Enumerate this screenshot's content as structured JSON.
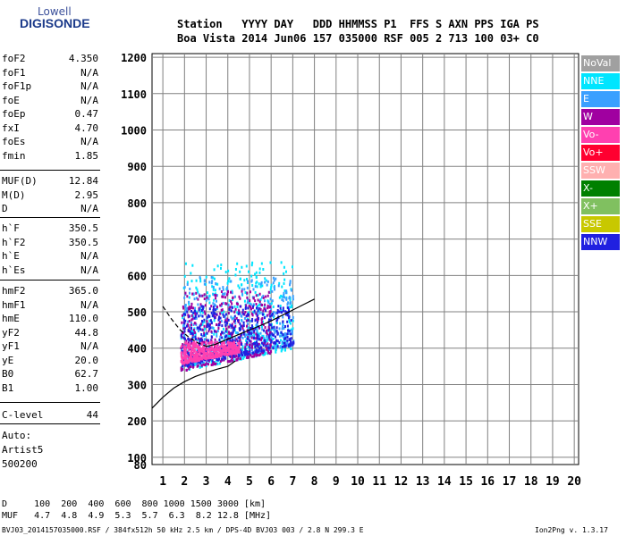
{
  "logo": {
    "line1": "Lowell",
    "line2": "DIGISONDE"
  },
  "header": {
    "row1": "Station   YYYY DAY   DDD HHMMSS P1  FFS S AXN PPS IGA PS",
    "row2": "Boa Vista 2014 Jun06 157 035000 RSF 005 2 713 100 03+ C0"
  },
  "params_group1": [
    {
      "name": "foF2",
      "value": "4.350"
    },
    {
      "name": "foF1",
      "value": "N/A"
    },
    {
      "name": "foF1p",
      "value": "N/A"
    },
    {
      "name": "foE",
      "value": "N/A"
    },
    {
      "name": "foEp",
      "value": "0.47"
    },
    {
      "name": "fxI",
      "value": "4.70"
    },
    {
      "name": "foEs",
      "value": "N/A"
    },
    {
      "name": "fmin",
      "value": "1.85"
    }
  ],
  "params_group2": [
    {
      "name": "MUF(D)",
      "value": "12.84"
    },
    {
      "name": "M(D)",
      "value": "2.95"
    },
    {
      "name": "D",
      "value": "N/A"
    }
  ],
  "params_group3": [
    {
      "name": "h`F",
      "value": "350.5"
    },
    {
      "name": "h`F2",
      "value": "350.5"
    },
    {
      "name": "h`E",
      "value": "N/A"
    },
    {
      "name": "h`Es",
      "value": "N/A"
    }
  ],
  "params_group4": [
    {
      "name": "hmF2",
      "value": "365.0"
    },
    {
      "name": "hmF1",
      "value": "N/A"
    },
    {
      "name": "hmE",
      "value": "110.0"
    },
    {
      "name": "yF2",
      "value": "44.8"
    },
    {
      "name": "yF1",
      "value": "N/A"
    },
    {
      "name": "yE",
      "value": "20.0"
    },
    {
      "name": "B0",
      "value": "62.7"
    },
    {
      "name": "B1",
      "value": "1.00"
    }
  ],
  "params_group5": [
    {
      "name": "C-level",
      "value": "44"
    }
  ],
  "auto": {
    "line1": "Auto:",
    "line2": "Artist5",
    "line3": "500200"
  },
  "legend": [
    {
      "label": "NoVal",
      "color": "#a0a0a0"
    },
    {
      "label": "NNE",
      "color": "#00e5ff"
    },
    {
      "label": "E",
      "color": "#3aa0ff"
    },
    {
      "label": "W",
      "color": "#a000a0"
    },
    {
      "label": "Vo-",
      "color": "#ff40b0"
    },
    {
      "label": "Vo+",
      "color": "#ff0030"
    },
    {
      "label": "SSW",
      "color": "#ffb0b0"
    },
    {
      "label": "X-",
      "color": "#008000"
    },
    {
      "label": "X+",
      "color": "#80c060"
    },
    {
      "label": "SSE",
      "color": "#c8c800"
    },
    {
      "label": "NNW",
      "color": "#2020e0"
    }
  ],
  "bottom": {
    "d_row": "D     100  200  400  600  800 1000 1500 3000 [km]",
    "muf_row": "MUF   4.7  4.8  4.9  5.3  5.7  6.3  8.2 12.8 [MHz]"
  },
  "footer": {
    "left": "BVJ03_2014157035000.RSF / 384fx512h 50 kHz 2.5 km / DPS-4D BVJ03 003 / 2.8 N 299.3 E",
    "right": "Ion2Png v. 1.3.17"
  },
  "chart_data": {
    "type": "scatter",
    "title": "",
    "xlabel": "",
    "ylabel": "",
    "xlim": [
      0.5,
      20.2
    ],
    "ylim": [
      80,
      1210
    ],
    "x_ticks": [
      1,
      2,
      3,
      4,
      5,
      6,
      7,
      8,
      9,
      10,
      11,
      12,
      13,
      14,
      15,
      16,
      17,
      18,
      19,
      20
    ],
    "y_ticks": [
      80,
      100,
      200,
      300,
      400,
      500,
      600,
      700,
      800,
      900,
      1000,
      1100,
      1200
    ],
    "grid": true,
    "traces": [
      {
        "name": "O-trace (dashed)",
        "style": "dashed",
        "x": [
          1.0,
          1.4,
          1.8,
          2.2,
          2.6,
          3.0
        ],
        "y": [
          515,
          480,
          450,
          430,
          415,
          405
        ]
      },
      {
        "name": "O-trace (solid)",
        "style": "solid",
        "x": [
          3.0,
          3.4,
          3.8,
          4.2,
          4.6,
          5.0,
          5.5,
          6.0,
          6.5,
          7.0,
          7.5,
          8.0
        ],
        "y": [
          405,
          410,
          420,
          430,
          440,
          450,
          462,
          475,
          490,
          505,
          520,
          535
        ]
      },
      {
        "name": "Profile (solid)",
        "style": "solid",
        "x": [
          0.5,
          1.0,
          1.5,
          2.0,
          2.5,
          3.0,
          3.5,
          4.0,
          4.35
        ],
        "y": [
          235,
          265,
          290,
          308,
          322,
          333,
          342,
          350,
          365
        ]
      }
    ],
    "echo_clusters": [
      {
        "series": "NNE",
        "x_range": [
          1.8,
          7.0
        ],
        "y_range": [
          340,
          640
        ]
      },
      {
        "series": "E",
        "x_range": [
          1.8,
          7.0
        ],
        "y_range": [
          350,
          600
        ]
      },
      {
        "series": "W",
        "x_range": [
          1.8,
          6.0
        ],
        "y_range": [
          340,
          560
        ]
      },
      {
        "series": "NNW",
        "x_range": [
          1.8,
          7.0
        ],
        "y_range": [
          350,
          520
        ]
      },
      {
        "series": "Vo-",
        "x_range": [
          1.8,
          4.5
        ],
        "y_range": [
          360,
          420
        ]
      }
    ]
  }
}
